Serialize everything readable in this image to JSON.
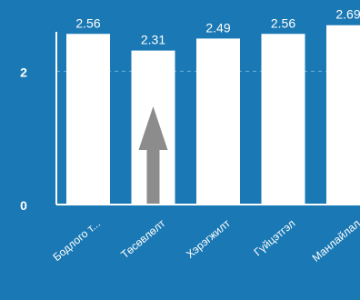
{
  "chart_data": {
    "type": "bar",
    "categories": [
      "Бодлого т...",
      "Төсөвлөлт",
      "Хэрэгжилт",
      "Гүйцэтгэл",
      "Манлайлал"
    ],
    "values": [
      2.56,
      2.31,
      2.49,
      2.56,
      2.69
    ],
    "value_labels": [
      "2.56",
      "2.31",
      "2.49",
      "2.56",
      "2.69"
    ],
    "yticks": [
      0,
      2
    ],
    "ytick_labels": [
      "0",
      "2"
    ],
    "ylim": [
      0,
      3
    ],
    "gridlines": [
      2
    ],
    "grid": "dashed, at 2",
    "legend": "none",
    "title": "",
    "xlabel": "",
    "ylabel": "",
    "annotation": {
      "type": "arrow",
      "direction": "up",
      "category": "Төсөвлөлт"
    },
    "colors": {
      "background": "#1a78b4",
      "bar": "#ffffff",
      "text": "#ffffff",
      "gridline": "#6fb0d8",
      "arrow": "#8c8c8c"
    }
  }
}
